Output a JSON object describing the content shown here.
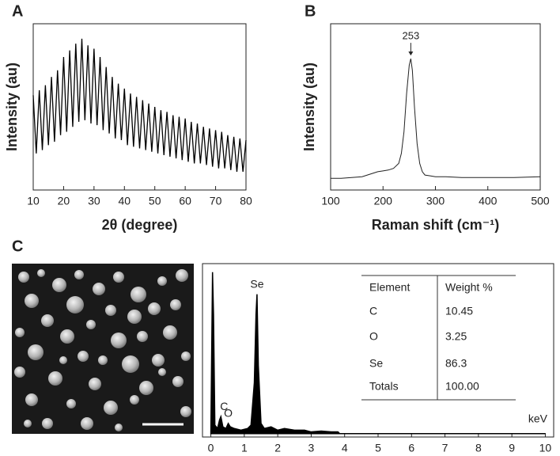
{
  "chart_data": [
    {
      "type": "line",
      "label": "A",
      "xlabel": "2θ (degree)",
      "ylabel": "Intensity (au)",
      "color": "#000000",
      "xlim": [
        10,
        80
      ],
      "xticks": [
        10,
        20,
        30,
        40,
        50,
        60,
        70,
        80
      ],
      "ylim": [
        0,
        100
      ],
      "x": [
        10,
        11,
        12,
        13,
        14,
        15,
        16,
        17,
        18,
        19,
        20,
        21,
        22,
        23,
        24,
        25,
        26,
        27,
        28,
        29,
        30,
        31,
        32,
        33,
        34,
        35,
        36,
        37,
        38,
        39,
        40,
        41,
        42,
        43,
        44,
        45,
        46,
        47,
        48,
        49,
        50,
        51,
        52,
        53,
        54,
        55,
        56,
        57,
        58,
        59,
        60,
        61,
        62,
        63,
        64,
        65,
        66,
        67,
        68,
        69,
        70,
        71,
        72,
        73,
        74,
        75,
        76,
        77,
        78,
        79,
        80
      ],
      "values": [
        57,
        22,
        60,
        24,
        63,
        27,
        68,
        29,
        72,
        33,
        80,
        35,
        84,
        38,
        88,
        41,
        91,
        42,
        87,
        40,
        85,
        39,
        80,
        36,
        74,
        34,
        68,
        31,
        64,
        30,
        61,
        27,
        58,
        26,
        56,
        25,
        54,
        24,
        52,
        23,
        50,
        22,
        48,
        21,
        47,
        20,
        45,
        19,
        44,
        18,
        43,
        17,
        41,
        16,
        40,
        16,
        38,
        15,
        37,
        14,
        36,
        13,
        35,
        13,
        33,
        12,
        32,
        11,
        31,
        11,
        30
      ]
    },
    {
      "type": "line",
      "label": "B",
      "xlabel": "Raman shift (cm⁻¹)",
      "ylabel": "Intensity (au)",
      "color": "#222222",
      "xlim": [
        100,
        500
      ],
      "xticks": [
        100,
        200,
        300,
        400,
        500
      ],
      "ylim": [
        0,
        100
      ],
      "x": [
        100,
        120,
        140,
        160,
        180,
        190,
        200,
        210,
        220,
        230,
        235,
        240,
        245,
        250,
        253,
        256,
        260,
        265,
        270,
        275,
        280,
        290,
        300,
        320,
        350,
        400,
        450,
        500
      ],
      "values": [
        7,
        7,
        7.5,
        8,
        10,
        11,
        11.5,
        12,
        13,
        16,
        22,
        35,
        58,
        75,
        79,
        72,
        50,
        28,
        16,
        11,
        9,
        8.5,
        8,
        8,
        7.5,
        7.5,
        7.5,
        8
      ],
      "annotations": [
        {
          "x": 253,
          "text": "253"
        }
      ]
    },
    {
      "type": "area",
      "label": "C",
      "xlabel": "keV",
      "color": "#000000",
      "xlim": [
        -0.25,
        10.25
      ],
      "xticks": [
        0,
        1,
        2,
        3,
        4,
        5,
        6,
        7,
        8,
        9,
        10
      ],
      "ylim": [
        -2,
        100
      ],
      "x": [
        0,
        0.05,
        0.08,
        0.12,
        0.2,
        0.26,
        0.3,
        0.36,
        0.45,
        0.52,
        0.58,
        0.7,
        0.9,
        1.1,
        1.2,
        1.3,
        1.35,
        1.38,
        1.42,
        1.5,
        1.6,
        1.8,
        2.0,
        2.2,
        2.5,
        2.8,
        3.0,
        3.3,
        3.6,
        3.8,
        3.85,
        5,
        10
      ],
      "values": [
        0,
        95,
        70,
        5,
        3,
        8,
        10,
        4,
        3,
        6,
        4,
        3,
        2,
        3,
        5,
        30,
        70,
        82,
        40,
        6,
        3,
        4,
        2,
        3,
        2,
        2,
        1,
        1.5,
        1,
        1,
        0,
        0,
        0
      ],
      "peak_labels": [
        {
          "x": 0.3,
          "text": "C"
        },
        {
          "x": 0.52,
          "text": "O"
        },
        {
          "x": 1.38,
          "text": "Se"
        }
      ],
      "table": {
        "header": [
          "Element",
          "Weight %"
        ],
        "rows": [
          [
            "C",
            "10.45"
          ],
          [
            "O",
            "3.25"
          ],
          [
            "Se",
            "86.3"
          ],
          [
            "Totals",
            "100.00"
          ]
        ]
      }
    }
  ]
}
